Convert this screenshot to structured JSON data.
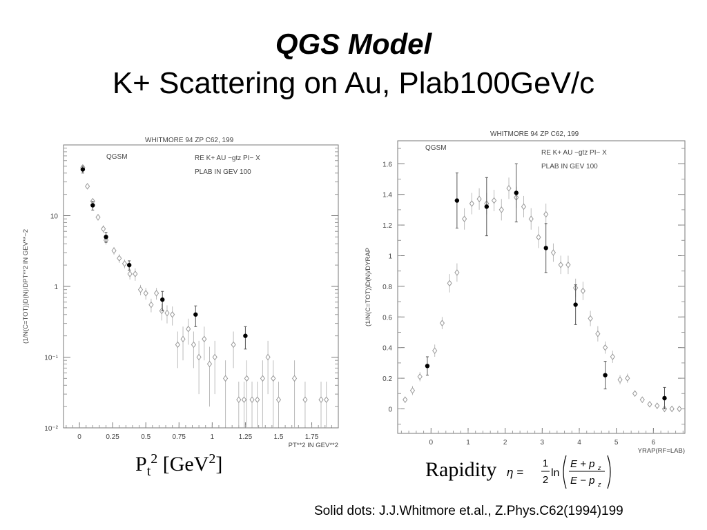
{
  "slide": {
    "title": "QGS Model",
    "subtitle": "K+ Scattering on Au, Plab100GeV/c",
    "credit": "Solid dots: J.J.Whitmore et.al., Z.Phys.C62(1994)199",
    "xlabel_left": {
      "base": "P",
      "sub": "t",
      "sup": "2",
      "rest": " [GeV",
      "sup2": "2",
      "end": "]"
    },
    "xlabel_right": "Rapidity",
    "formula": {
      "lhs": "η =",
      "frac_num": "1",
      "frac_den": "2",
      "ln": "ln",
      "num": "E + p",
      "den": "E − p",
      "sub": "z"
    }
  },
  "chart_data": [
    {
      "type": "scatter",
      "log_y": true,
      "header": "WHITMORE 94   ZP C62, 199",
      "model_label": "QGSM",
      "reaction_label": "RE   K+ AU −gtz PI− X",
      "plab_label": "PLAB IN GEV   100",
      "ylabel": "(1/N(C=TOT))D(N)/DPT**2 IN GEV**−2",
      "xlabel": "PT**2 IN GEV**2",
      "xlim": [
        -0.12,
        1.95
      ],
      "ylim": [
        0.01,
        100
      ],
      "xticks": [
        "0",
        "0.25",
        "0.5",
        "0.75",
        "1",
        "1.25",
        "1.5",
        "1.75"
      ],
      "ytick_labels": [
        "10",
        "1",
        "10⁻¹",
        "10⁻²"
      ],
      "grid": false,
      "series": [
        {
          "marker": "solid-dot",
          "points": [
            {
              "x": 0.025,
              "y": 45.0,
              "err": 5
            },
            {
              "x": 0.1,
              "y": 14.0,
              "err": 2
            },
            {
              "x": 0.2,
              "y": 5.0,
              "err": 0.8
            },
            {
              "x": 0.375,
              "y": 2.0,
              "err": 0.3
            },
            {
              "x": 0.625,
              "y": 0.65,
              "err": 0.2
            },
            {
              "x": 0.875,
              "y": 0.4,
              "err": 0.13
            },
            {
              "x": 1.25,
              "y": 0.2,
              "err": 0.07
            }
          ]
        },
        {
          "marker": "open-diamond",
          "points": [
            {
              "x": 0.025,
              "y": 48.0,
              "err": 4
            },
            {
              "x": 0.06,
              "y": 26.0,
              "err": 2
            },
            {
              "x": 0.1,
              "y": 16.0,
              "err": 1.5
            },
            {
              "x": 0.14,
              "y": 9.5,
              "err": 1
            },
            {
              "x": 0.18,
              "y": 6.5,
              "err": 0.8
            },
            {
              "x": 0.2,
              "y": 4.5,
              "err": 0.6
            },
            {
              "x": 0.26,
              "y": 3.2,
              "err": 0.4
            },
            {
              "x": 0.3,
              "y": 2.5,
              "err": 0.35
            },
            {
              "x": 0.34,
              "y": 2.1,
              "err": 0.3
            },
            {
              "x": 0.38,
              "y": 1.5,
              "err": 0.25
            },
            {
              "x": 0.42,
              "y": 1.5,
              "err": 0.3
            },
            {
              "x": 0.46,
              "y": 0.9,
              "err": 0.15
            },
            {
              "x": 0.5,
              "y": 0.8,
              "err": 0.15
            },
            {
              "x": 0.54,
              "y": 0.55,
              "err": 0.12
            },
            {
              "x": 0.58,
              "y": 0.8,
              "err": 0.15
            },
            {
              "x": 0.62,
              "y": 0.45,
              "err": 0.12
            },
            {
              "x": 0.66,
              "y": 0.42,
              "err": 0.12
            },
            {
              "x": 0.7,
              "y": 0.4,
              "err": 0.12
            },
            {
              "x": 0.74,
              "y": 0.15,
              "err": 0.08
            },
            {
              "x": 0.78,
              "y": 0.18,
              "err": 0.09
            },
            {
              "x": 0.82,
              "y": 0.25,
              "err": 0.1
            },
            {
              "x": 0.86,
              "y": 0.15,
              "err": 0.08
            },
            {
              "x": 0.9,
              "y": 0.1,
              "err": 0.07
            },
            {
              "x": 0.94,
              "y": 0.18,
              "err": 0.09
            },
            {
              "x": 0.98,
              "y": 0.08,
              "err": 0.06
            },
            {
              "x": 1.02,
              "y": 0.1,
              "err": 0.07
            },
            {
              "x": 1.1,
              "y": 0.05,
              "err": 0.04
            },
            {
              "x": 1.16,
              "y": 0.15,
              "err": 0.08
            },
            {
              "x": 1.2,
              "y": 0.025,
              "err": 0.02
            },
            {
              "x": 1.24,
              "y": 0.025,
              "err": 0.02
            },
            {
              "x": 1.26,
              "y": 0.05,
              "err": 0.04
            },
            {
              "x": 1.3,
              "y": 0.025,
              "err": 0.02
            },
            {
              "x": 1.34,
              "y": 0.025,
              "err": 0.02
            },
            {
              "x": 1.38,
              "y": 0.05,
              "err": 0.04
            },
            {
              "x": 1.42,
              "y": 0.1,
              "err": 0.07
            },
            {
              "x": 1.46,
              "y": 0.05,
              "err": 0.04
            },
            {
              "x": 1.5,
              "y": 0.025,
              "err": 0.02
            },
            {
              "x": 1.62,
              "y": 0.05,
              "err": 0.04
            },
            {
              "x": 1.7,
              "y": 0.025,
              "err": 0.02
            },
            {
              "x": 1.82,
              "y": 0.025,
              "err": 0.02
            },
            {
              "x": 1.86,
              "y": 0.025,
              "err": 0.02
            }
          ]
        }
      ]
    },
    {
      "type": "scatter",
      "log_y": false,
      "header": "WHITMORE 94   ZP C62, 199",
      "model_label": "QGSM",
      "reaction_label": "RE   K+ AU −gtz PI− X",
      "plab_label": "PLAB IN GEV   100",
      "ylabel": "(1/N(C=TOT))D(N)/DYRAP",
      "xlabel": "YRAP(RF=LAB)",
      "xlim": [
        -0.9,
        6.85
      ],
      "ylim": [
        -0.16,
        1.75
      ],
      "xticks": [
        "0",
        "1",
        "2",
        "3",
        "4",
        "5",
        "6"
      ],
      "yticks": [
        "0",
        "0.2",
        "0.4",
        "0.6",
        "0.8",
        "1",
        "1.2",
        "1.4",
        "1.6"
      ],
      "grid": false,
      "series": [
        {
          "marker": "solid-dot",
          "points": [
            {
              "x": -0.1,
              "y": 0.28,
              "err": 0.06
            },
            {
              "x": 0.7,
              "y": 1.36,
              "err": 0.18
            },
            {
              "x": 1.5,
              "y": 1.32,
              "err": 0.19
            },
            {
              "x": 2.3,
              "y": 1.41,
              "err": 0.19
            },
            {
              "x": 3.1,
              "y": 1.05,
              "err": 0.16
            },
            {
              "x": 3.9,
              "y": 0.68,
              "err": 0.13
            },
            {
              "x": 4.7,
              "y": 0.22,
              "err": 0.09
            },
            {
              "x": 6.3,
              "y": 0.07,
              "err": 0.07
            }
          ]
        },
        {
          "marker": "open-diamond",
          "points": [
            {
              "x": -0.7,
              "y": 0.06,
              "err": 0.02
            },
            {
              "x": -0.5,
              "y": 0.12,
              "err": 0.03
            },
            {
              "x": -0.3,
              "y": 0.21,
              "err": 0.03
            },
            {
              "x": 0.1,
              "y": 0.38,
              "err": 0.04
            },
            {
              "x": 0.3,
              "y": 0.56,
              "err": 0.04
            },
            {
              "x": 0.5,
              "y": 0.82,
              "err": 0.06
            },
            {
              "x": 0.7,
              "y": 0.89,
              "err": 0.06
            },
            {
              "x": 0.9,
              "y": 1.24,
              "err": 0.07
            },
            {
              "x": 1.1,
              "y": 1.34,
              "err": 0.07
            },
            {
              "x": 1.3,
              "y": 1.37,
              "err": 0.07
            },
            {
              "x": 1.5,
              "y": 1.34,
              "err": 0.07
            },
            {
              "x": 1.7,
              "y": 1.36,
              "err": 0.07
            },
            {
              "x": 1.9,
              "y": 1.3,
              "err": 0.07
            },
            {
              "x": 2.1,
              "y": 1.44,
              "err": 0.07
            },
            {
              "x": 2.3,
              "y": 1.38,
              "err": 0.07
            },
            {
              "x": 2.5,
              "y": 1.32,
              "err": 0.07
            },
            {
              "x": 2.7,
              "y": 1.24,
              "err": 0.07
            },
            {
              "x": 2.9,
              "y": 1.12,
              "err": 0.07
            },
            {
              "x": 3.1,
              "y": 1.27,
              "err": 0.07
            },
            {
              "x": 3.3,
              "y": 1.02,
              "err": 0.06
            },
            {
              "x": 3.5,
              "y": 0.94,
              "err": 0.06
            },
            {
              "x": 3.7,
              "y": 0.94,
              "err": 0.06
            },
            {
              "x": 3.9,
              "y": 0.79,
              "err": 0.06
            },
            {
              "x": 4.1,
              "y": 0.77,
              "err": 0.06
            },
            {
              "x": 4.3,
              "y": 0.59,
              "err": 0.05
            },
            {
              "x": 4.5,
              "y": 0.49,
              "err": 0.05
            },
            {
              "x": 4.7,
              "y": 0.4,
              "err": 0.04
            },
            {
              "x": 4.9,
              "y": 0.34,
              "err": 0.04
            },
            {
              "x": 5.1,
              "y": 0.19,
              "err": 0.03
            },
            {
              "x": 5.3,
              "y": 0.2,
              "err": 0.03
            },
            {
              "x": 5.5,
              "y": 0.1,
              "err": 0.02
            },
            {
              "x": 5.7,
              "y": 0.06,
              "err": 0.02
            },
            {
              "x": 5.9,
              "y": 0.03,
              "err": 0.01
            },
            {
              "x": 6.1,
              "y": 0.02,
              "err": 0.01
            },
            {
              "x": 6.3,
              "y": 0.0,
              "err": 0.01
            },
            {
              "x": 6.5,
              "y": 0.0,
              "err": 0.01
            },
            {
              "x": 6.7,
              "y": 0.0,
              "err": 0.01
            }
          ]
        }
      ]
    }
  ]
}
